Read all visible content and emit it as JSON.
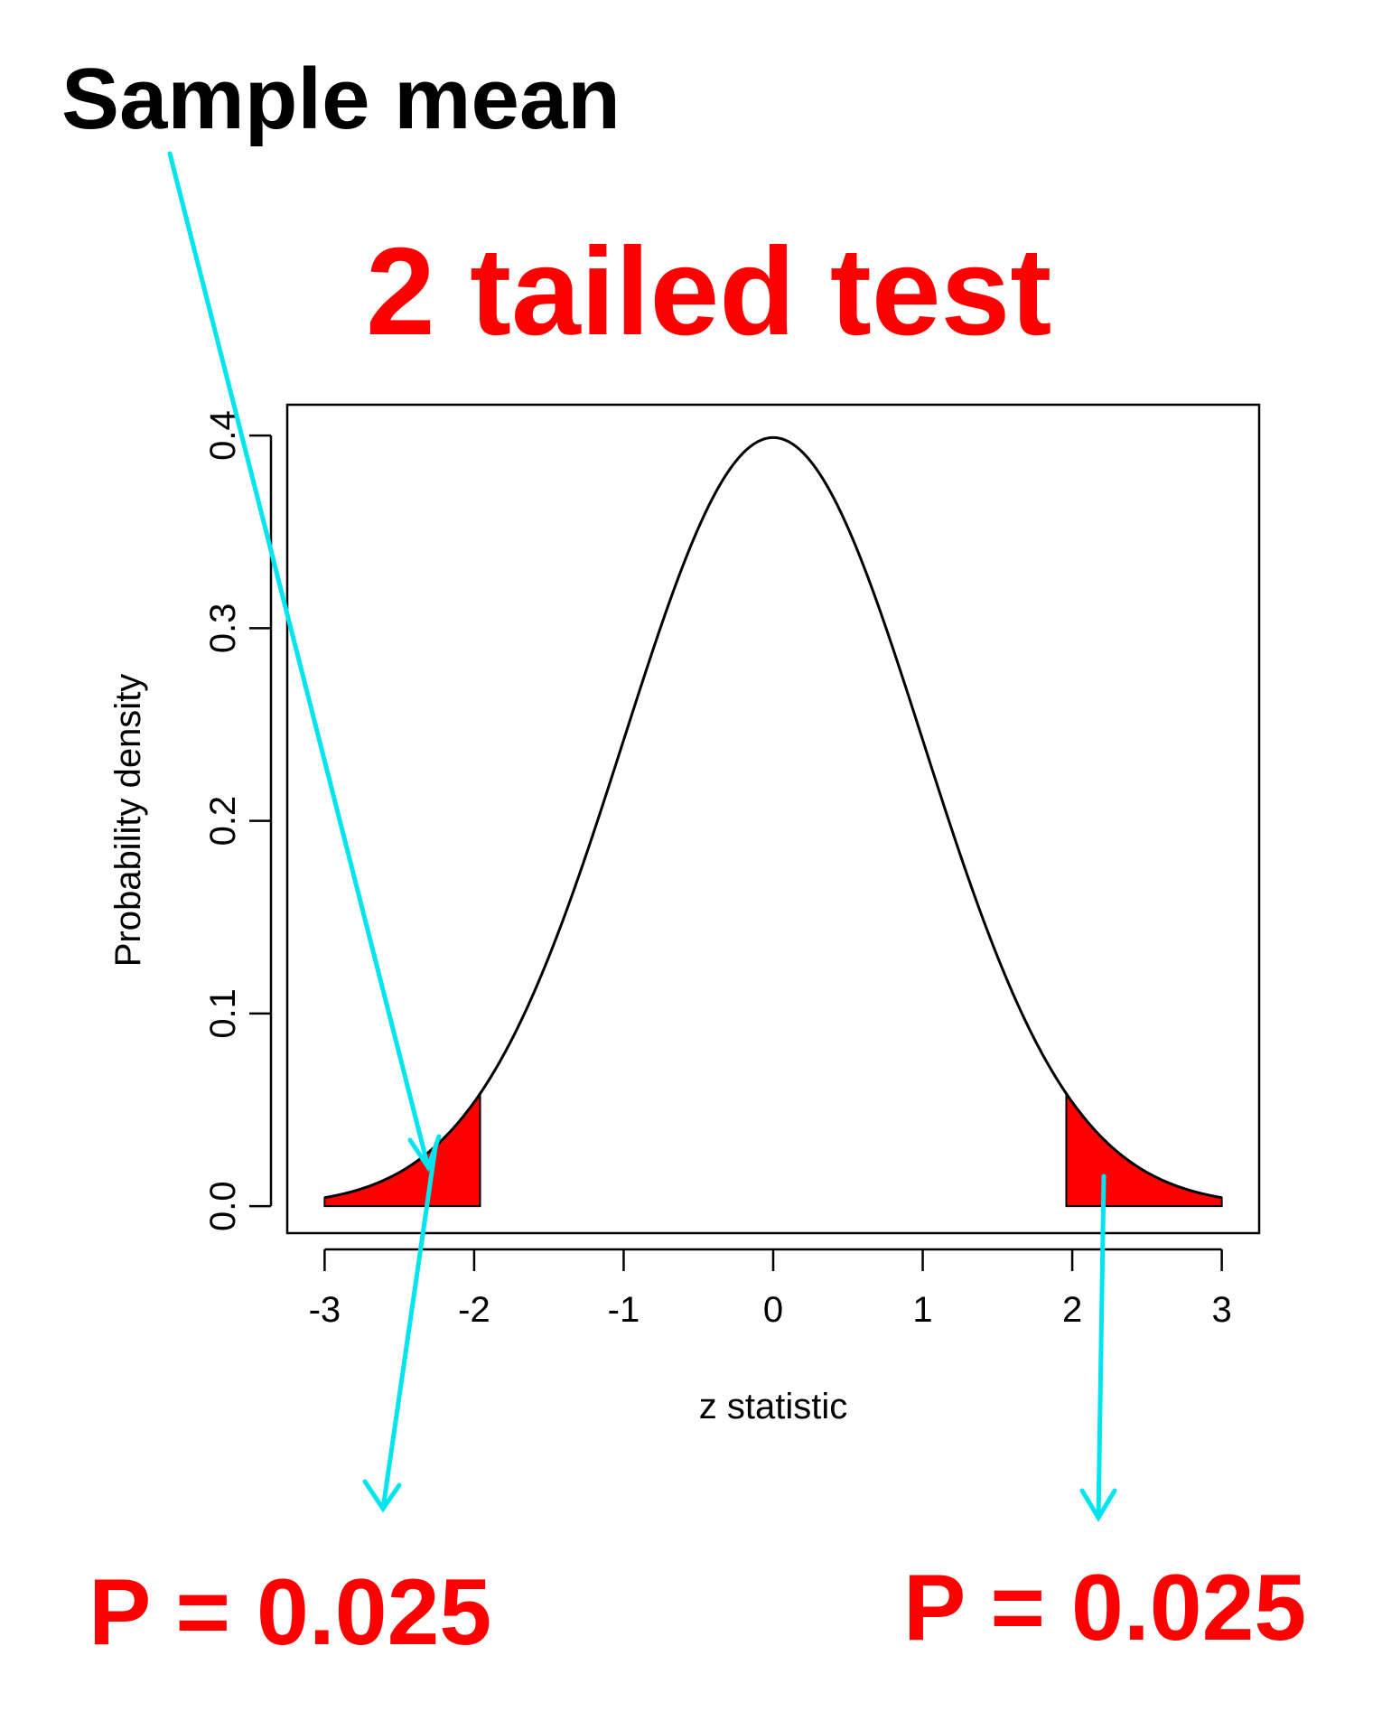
{
  "annotations": {
    "sample_mean_label": "Sample mean",
    "test_title": "2 tailed test",
    "left_p_label": "P = 0.025",
    "right_p_label": "P = 0.025"
  },
  "colors": {
    "title_red": "#ff0000",
    "arrow_cyan": "#00e5ee",
    "tail_fill": "#ff0000",
    "curve": "#000000"
  },
  "chart_data": {
    "type": "area",
    "title": "",
    "xlabel": "z statistic",
    "ylabel": "Probability density",
    "xlim": [
      -3.25,
      3.25
    ],
    "ylim": [
      -0.014,
      0.416
    ],
    "x_ticks": [
      -3,
      -2,
      -1,
      0,
      1,
      2,
      3
    ],
    "x_tick_labels": [
      "-3",
      "-2",
      "-1",
      "0",
      "1",
      "2",
      "3"
    ],
    "y_ticks": [
      0.0,
      0.1,
      0.2,
      0.3,
      0.4
    ],
    "y_tick_labels": [
      "0.0",
      "0.1",
      "0.2",
      "0.3",
      "0.4"
    ],
    "series": [
      {
        "distribution": "standard normal density",
        "x_range": [
          -3,
          3
        ],
        "shaded_regions": [
          [
            -3,
            -1.96
          ],
          [
            1.96,
            3
          ]
        ]
      }
    ],
    "grid": false,
    "sample_mean_z": -2.25
  }
}
